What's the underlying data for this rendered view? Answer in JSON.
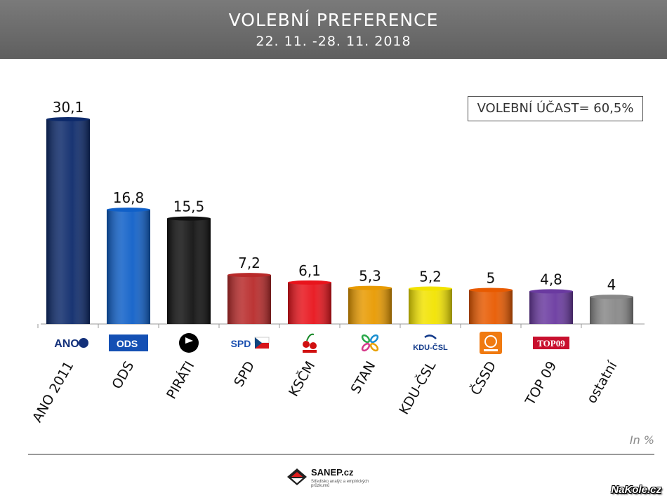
{
  "header": {
    "title": "VOLEBNÍ PREFERENCE",
    "subtitle": "22. 11. -28. 11. 2018"
  },
  "turnout_label": "VOLEBNÍ ÚČAST= 60,5%",
  "unit_note": "In %",
  "footer": {
    "brand": "SANEP.cz",
    "tagline": "Středisko analýz a empirických průzkumů",
    "watermark": "NaKole.cz"
  },
  "chart_data": {
    "type": "bar",
    "title": "VOLEBNÍ PREFERENCE",
    "subtitle": "22. 11. -28. 11. 2018",
    "unit": "In %",
    "categories": [
      "ANO 2011",
      "ODS",
      "PIRÁTI",
      "SPD",
      "KSČM",
      "STAN",
      "KDU-ČSL",
      "ČSSD",
      "TOP 09",
      "ostatní"
    ],
    "values": [
      30.1,
      16.8,
      15.5,
      7.2,
      6.1,
      5.3,
      5.2,
      5,
      4.8,
      4
    ],
    "value_labels": [
      "30,1",
      "16,8",
      "15,5",
      "7,2",
      "6,1",
      "5,3",
      "5,2",
      "5",
      "4,8",
      "4"
    ],
    "colors": [
      "#0d2a6b",
      "#1060c8",
      "#111111",
      "#b82a2a",
      "#e8141c",
      "#e89a00",
      "#f2e300",
      "#e85a00",
      "#6a3aa0",
      "#888888"
    ],
    "logo_icons": [
      "ano-logo-icon",
      "ods-logo-icon",
      "pirati-logo-icon",
      "spd-logo-icon",
      "kscm-logo-icon",
      "stan-logo-icon",
      "kdu-csl-logo-icon",
      "cssd-logo-icon",
      "top09-logo-icon",
      ""
    ],
    "ylim": [
      0,
      32
    ],
    "grid": false,
    "legend": "none"
  }
}
